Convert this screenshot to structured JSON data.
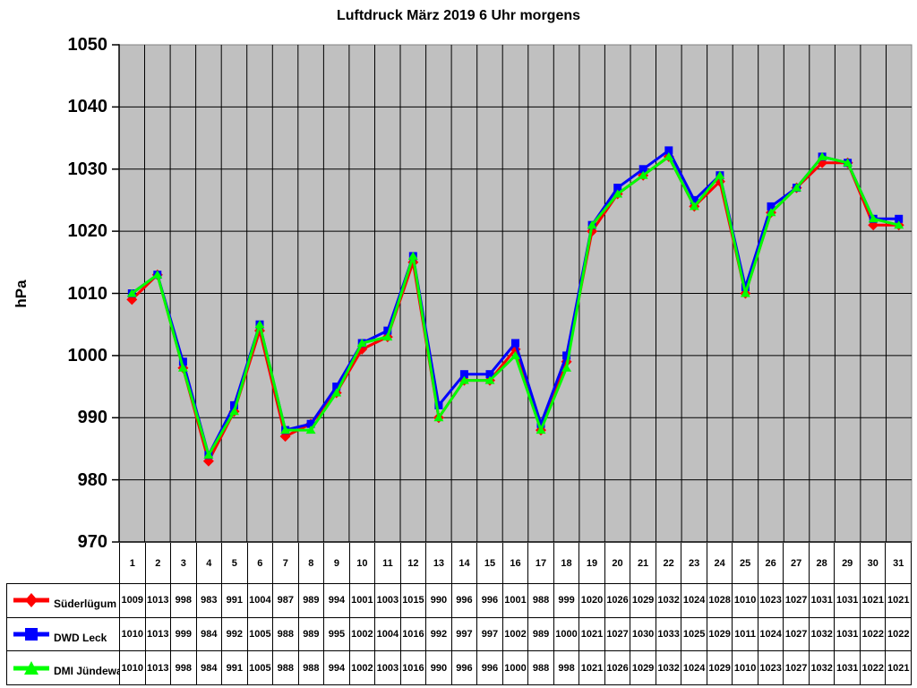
{
  "title": "Luftdruck März 2019 6 Uhr morgens",
  "chart_data": {
    "type": "line",
    "title": "Luftdruck März 2019 6 Uhr morgens",
    "xlabel": "",
    "ylabel": "hPa",
    "ylim": [
      970,
      1050
    ],
    "ytick_step": 10,
    "grid": true,
    "plot_bg": "#c0c0c0",
    "grid_color": "#000000",
    "legend_position": "table-left",
    "categories": [
      "1",
      "2",
      "3",
      "4",
      "5",
      "6",
      "7",
      "8",
      "9",
      "10",
      "11",
      "12",
      "13",
      "14",
      "15",
      "16",
      "17",
      "18",
      "19",
      "20",
      "21",
      "22",
      "23",
      "24",
      "25",
      "26",
      "27",
      "28",
      "29",
      "30",
      "31"
    ],
    "series": [
      {
        "name": "Süderlügum",
        "color": "#ff0000",
        "marker": "diamond",
        "values": [
          1009,
          1013,
          998,
          983,
          991,
          1004,
          987,
          989,
          994,
          1001,
          1003,
          1015,
          990,
          996,
          996,
          1001,
          988,
          999,
          1020,
          1026,
          1029,
          1032,
          1024,
          1028,
          1010,
          1023,
          1027,
          1031,
          1031,
          1021,
          1021
        ]
      },
      {
        "name": "DWD Leck",
        "color": "#0000ff",
        "marker": "square",
        "values": [
          1010,
          1013,
          999,
          984,
          992,
          1005,
          988,
          989,
          995,
          1002,
          1004,
          1016,
          992,
          997,
          997,
          1002,
          989,
          1000,
          1021,
          1027,
          1030,
          1033,
          1025,
          1029,
          1011,
          1024,
          1027,
          1032,
          1031,
          1022,
          1022
        ]
      },
      {
        "name": "DMI Jündewatt",
        "color": "#00ff00",
        "marker": "triangle",
        "values": [
          1010,
          1013,
          998,
          984,
          991,
          1005,
          988,
          988,
          994,
          1002,
          1003,
          1016,
          990,
          996,
          996,
          1000,
          988,
          998,
          1021,
          1026,
          1029,
          1032,
          1024,
          1029,
          1010,
          1023,
          1027,
          1032,
          1031,
          1022,
          1021
        ]
      }
    ]
  }
}
